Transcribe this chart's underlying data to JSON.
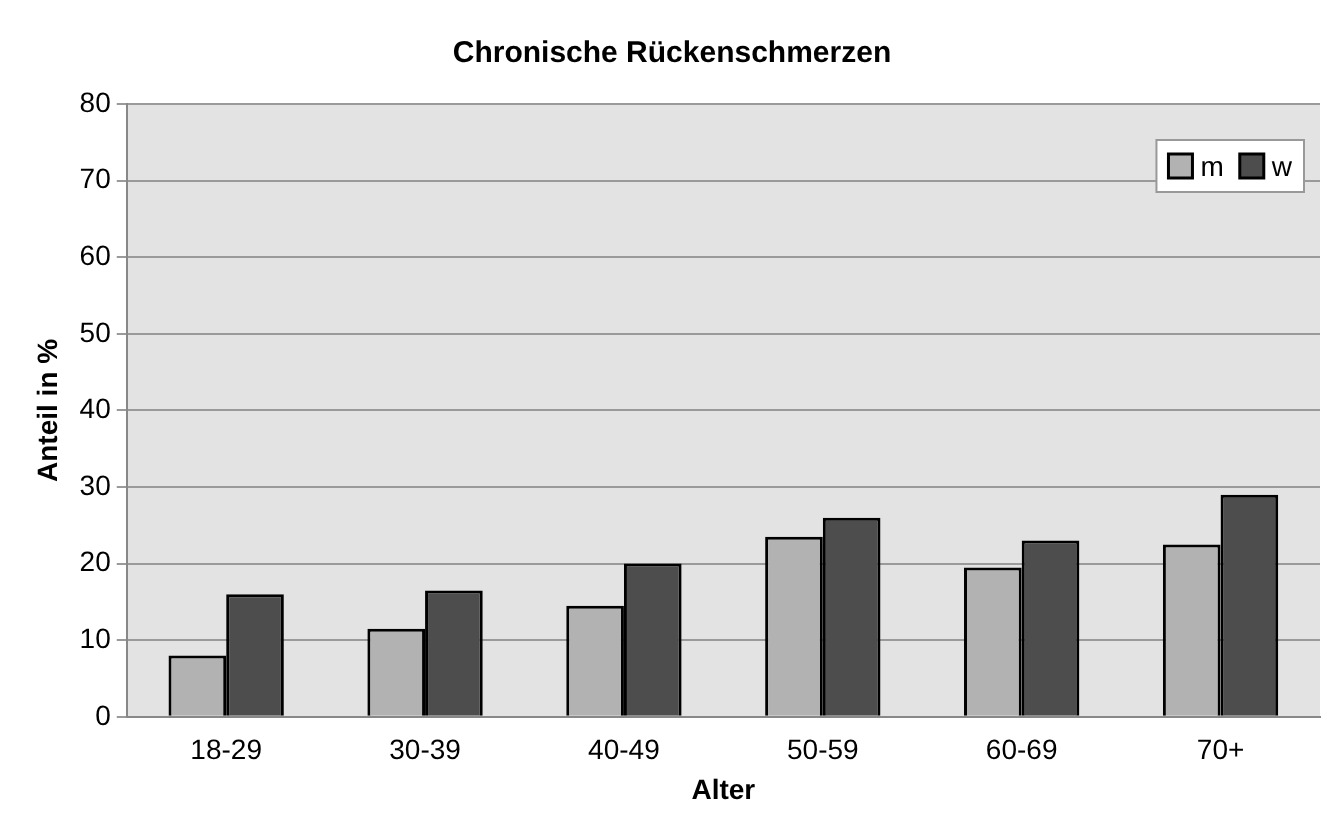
{
  "chart_data": {
    "type": "bar",
    "title": "Chronische Rückenschmerzen",
    "xlabel": "Alter",
    "ylabel": "Anteil in %",
    "categories": [
      "18-29",
      "30-39",
      "40-49",
      "50-59",
      "60-69",
      "70+"
    ],
    "series": [
      {
        "name": "m",
        "color": "#b2b2b2",
        "values": [
          8,
          11.5,
          14.5,
          23.5,
          19.5,
          22.5
        ]
      },
      {
        "name": "w",
        "color": "#4d4d4d",
        "values": [
          16,
          16.5,
          20,
          26,
          23,
          29
        ]
      }
    ],
    "ylim": [
      0,
      80
    ],
    "yticks": [
      0,
      10,
      20,
      30,
      40,
      50,
      60,
      70,
      80
    ],
    "grid": "y",
    "legend": "top right"
  }
}
